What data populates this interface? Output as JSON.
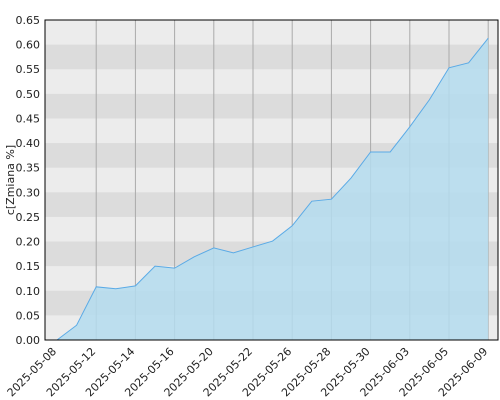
{
  "chart_data": {
    "type": "area",
    "y_label": "c[Zmiana %]",
    "categories": [
      "2025-05-08",
      null,
      "2025-05-12",
      null,
      "2025-05-14",
      null,
      "2025-05-16",
      null,
      "2025-05-20",
      null,
      "2025-05-22",
      null,
      "2025-05-26",
      null,
      "2025-05-28",
      null,
      "2025-05-30",
      null,
      "2025-06-03",
      null,
      "2025-06-05",
      null,
      "2025-06-09"
    ],
    "values": [
      0,
      0.03,
      0.108,
      0.104,
      0.11,
      0.15,
      0.146,
      0.169,
      0.187,
      0.177,
      0.189,
      0.201,
      0.232,
      0.282,
      0.286,
      0.329,
      0.382,
      0.382,
      0.433,
      0.488,
      0.553,
      0.563,
      0.613
    ],
    "color": "#5aaae6",
    "fill": "#b4dcef",
    "ylim": [
      0,
      0.65
    ],
    "yticks": [
      {
        "value": 0,
        "label": "0.00"
      },
      {
        "value": 0.05,
        "label": "0.05"
      },
      {
        "value": 0.1,
        "label": "0.10"
      },
      {
        "value": 0.15,
        "label": "0.15"
      },
      {
        "value": 0.2,
        "label": "0.20"
      },
      {
        "value": 0.25,
        "label": "0.25"
      },
      {
        "value": 0.3,
        "label": "0.30"
      },
      {
        "value": 0.35,
        "label": "0.35"
      },
      {
        "value": 0.4,
        "label": "0.40"
      },
      {
        "value": 0.45,
        "label": "0.45"
      },
      {
        "value": 0.5,
        "label": "0.50"
      },
      {
        "value": 0.55,
        "label": "0.55"
      },
      {
        "value": 0.6,
        "label": "0.60"
      },
      {
        "value": 0.65,
        "label": "0.65"
      }
    ],
    "grid": true
  }
}
